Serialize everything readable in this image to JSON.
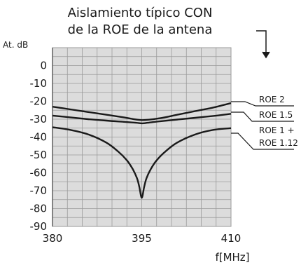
{
  "chart_data": {
    "type": "line",
    "title_lines": [
      "Aislamiento típico CON",
      "de la ROE de la antena"
    ],
    "ylabel": "At. dB",
    "xlabel": "f[MHz]",
    "xlim": [
      380,
      410
    ],
    "ylim": [
      -90,
      10
    ],
    "y_ticks": [
      0,
      -10,
      -20,
      -30,
      -40,
      -50,
      -60,
      -70,
      -80,
      -90
    ],
    "y_tick_labels": [
      "0",
      "-10",
      "-20",
      "-30",
      "-40",
      "-50",
      "-60",
      "-70",
      "-80",
      "-90"
    ],
    "x_ticks": [
      380,
      395,
      410
    ],
    "x_tick_labels": [
      "380",
      "395",
      "410"
    ],
    "grid": true,
    "series": [
      {
        "name": "ROE 2",
        "x": [
          380,
          383,
          386,
          389,
          392,
          395,
          398,
          401,
          404,
          407,
          410
        ],
        "y": [
          -23,
          -24.5,
          -26,
          -27.5,
          -29,
          -30.5,
          -29.5,
          -27.5,
          -25.5,
          -23.5,
          -21
        ]
      },
      {
        "name": "ROE 1.5",
        "x": [
          380,
          383,
          386,
          389,
          392,
          394,
          395,
          396,
          398,
          401,
          404,
          407,
          410
        ],
        "y": [
          -28,
          -29,
          -30,
          -30.8,
          -31.5,
          -32,
          -32.3,
          -32,
          -31.2,
          -30.2,
          -29.2,
          -28.2,
          -27
        ]
      },
      {
        "name": "ROE 1 +\nROE 1.12",
        "x": [
          380,
          383,
          386,
          389,
          391,
          392.5,
          393.5,
          394.2,
          394.6,
          395,
          395.4,
          395.8,
          396.5,
          397.5,
          399,
          401,
          404,
          407,
          410
        ],
        "y": [
          -34.5,
          -36,
          -38.5,
          -43,
          -48,
          -53,
          -58,
          -63,
          -68,
          -74,
          -68,
          -63,
          -58,
          -53,
          -48,
          -43,
          -38.5,
          -36,
          -35
        ]
      }
    ],
    "legend_labels": [
      "ROE 2",
      "ROE 1.5",
      "ROE 1 +",
      "ROE 1.12"
    ]
  },
  "colors": {
    "grid_bg": "#dcdcdc",
    "grid_line": "#9a9a9a",
    "curve": "#1a1a1a"
  }
}
